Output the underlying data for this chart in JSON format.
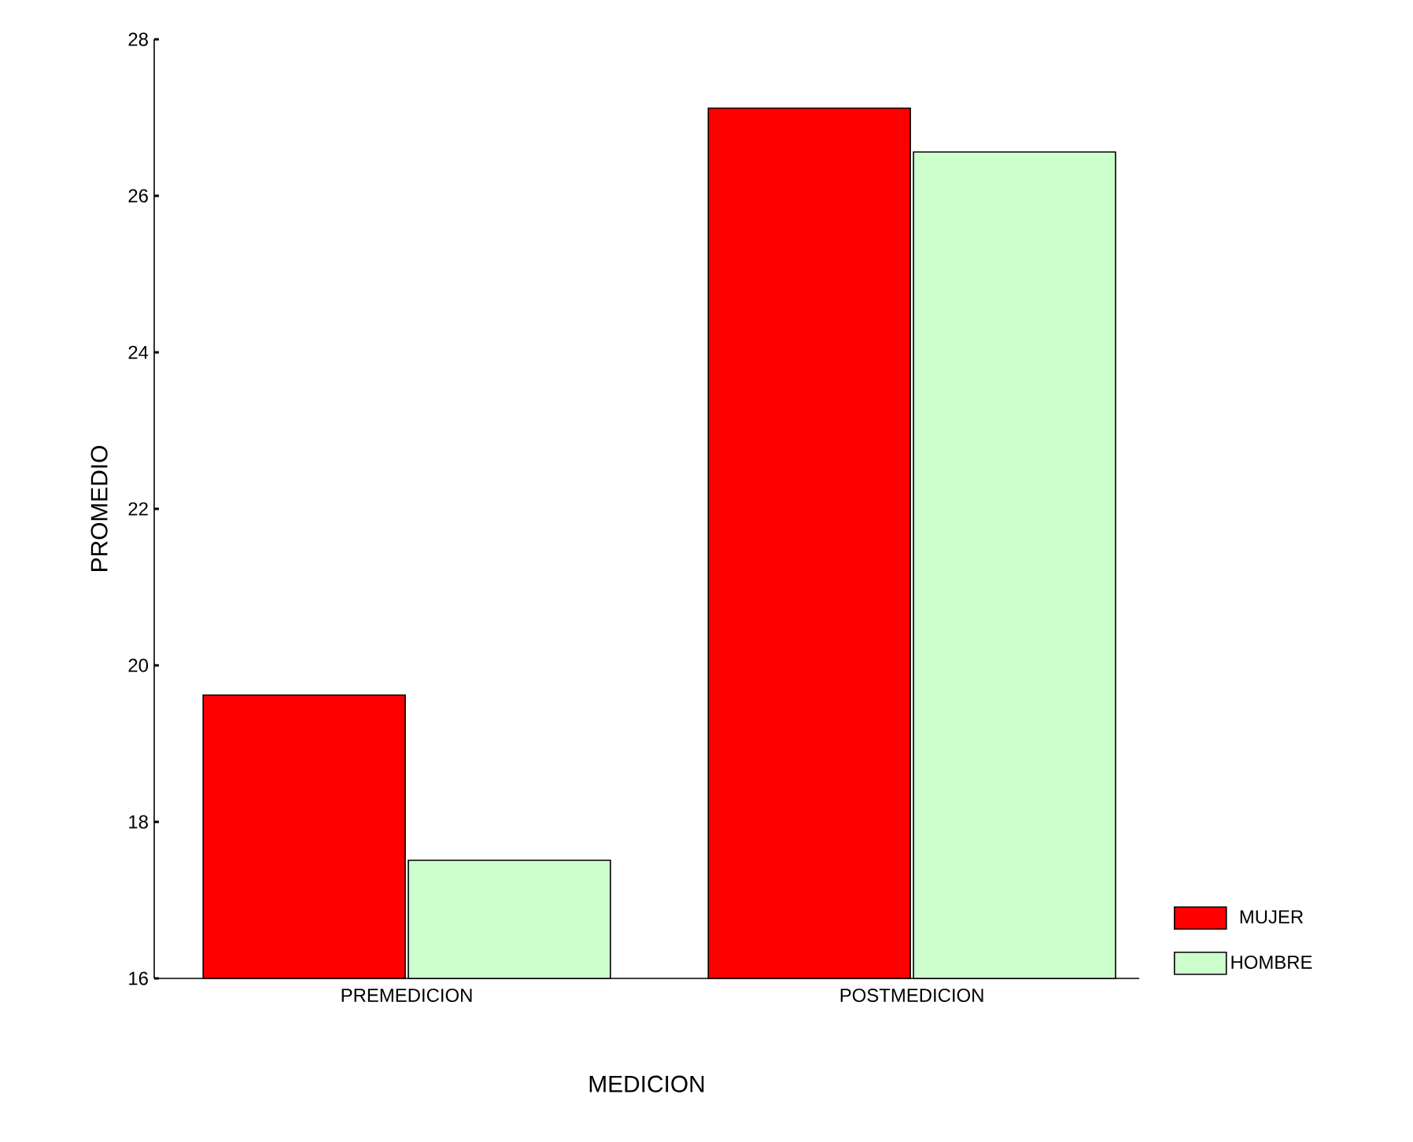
{
  "chart_data": {
    "type": "bar",
    "xlabel": "MEDICION",
    "ylabel": "PROMEDIO",
    "categories": [
      "PREMEDICION",
      "POSTMEDICION"
    ],
    "series": [
      {
        "name": "MUJER",
        "color": "#ff0000",
        "values": [
          19.62,
          27.12
        ]
      },
      {
        "name": "HOMBRE",
        "color": "#ccffcc",
        "values": [
          17.51,
          26.56
        ]
      }
    ],
    "ylim": [
      16,
      28
    ],
    "yticks": [
      16,
      18,
      20,
      22,
      24,
      26,
      28
    ],
    "grid": false,
    "legend": "right"
  }
}
